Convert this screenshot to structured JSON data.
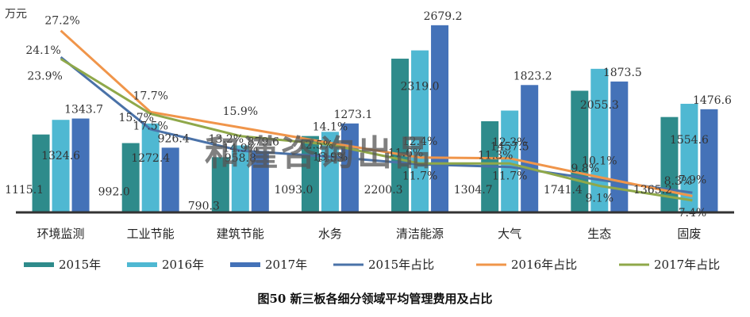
{
  "caption": "图50 新三板各细分领域平均管理费用及占比",
  "unit_label": "万元",
  "watermark": "和谨咨询出品",
  "colors": {
    "bar2015": "#2e8b8b",
    "bar2016": "#4fb8d2",
    "bar2017": "#4472b8",
    "line2015": "#4a72a8",
    "line2016": "#f0954a",
    "line2017": "#8fa84a",
    "axis": "#333333"
  },
  "chart_data": {
    "type": "bar",
    "title": "",
    "categories": [
      "环境监测",
      "工业节能",
      "建筑节能",
      "水务",
      "清洁能源",
      "大气",
      "生态",
      "固废"
    ],
    "ylabel": "万元",
    "ylim": [
      0,
      2700
    ],
    "series": [
      {
        "name": "2015年",
        "type": "bar",
        "values": [
          1115.1,
          992.0,
          790.3,
          1093.0,
          2200.3,
          1304.7,
          1741.4,
          1365.2
        ],
        "labels": [
          "1115.1",
          "992.0",
          "790.3",
          "1093.0",
          "2200.3",
          "1304.7",
          "1741.4",
          "1365.2"
        ]
      },
      {
        "name": "2016年",
        "type": "bar",
        "values": [
          1324.6,
          1272.4,
          958.8,
          1153,
          2319.0,
          1457.5,
          2055.3,
          1554.6
        ],
        "labels": [
          "1324.6",
          "1272.4",
          "958.8",
          "1153",
          "2319.0",
          "1457.5",
          "2055.3",
          "1554.6"
        ]
      },
      {
        "name": "2017年",
        "type": "bar",
        "values": [
          1343.7,
          926.4,
          879.6,
          1273.1,
          2679.2,
          1823.2,
          1873.5,
          1476.6
        ],
        "labels": [
          "1343.7",
          "926.4",
          "879.6",
          "1273.1",
          "2679.2",
          "1823.2",
          "1873.5",
          "1476.6"
        ]
      },
      {
        "name": "2015年占比",
        "type": "line",
        "values": [
          24.1,
          15.7,
          13.2,
          12.5,
          11.6,
          11.3,
          9.8,
          8.3
        ],
        "labels": [
          "24.1%",
          "15.7%",
          "13.2%",
          "12.5%",
          "11.6%",
          "11.3%",
          "9.8%",
          "8.3%"
        ]
      },
      {
        "name": "2016年占比",
        "type": "line",
        "values": [
          27.2,
          17.7,
          15.9,
          14.1,
          12.4,
          12.3,
          10.1,
          7.9
        ],
        "labels": [
          "27.2%",
          "17.7%",
          "15.9%",
          "14.1%",
          "12.4%",
          "12.3%",
          "10.1%",
          "7.9%"
        ]
      },
      {
        "name": "2017年占比",
        "type": "line",
        "values": [
          23.9,
          17.5,
          14.9,
          13.9,
          11.7,
          11.7,
          9.1,
          7.4
        ],
        "labels": [
          "23.9%",
          "17.5%",
          "14.9%",
          "13.9%",
          "11.7%",
          "11.7%",
          "9.1%",
          "7.4%"
        ]
      }
    ],
    "secondary_ylim": [
      6,
      28
    ],
    "legend_position": "bottom",
    "grid": false
  }
}
